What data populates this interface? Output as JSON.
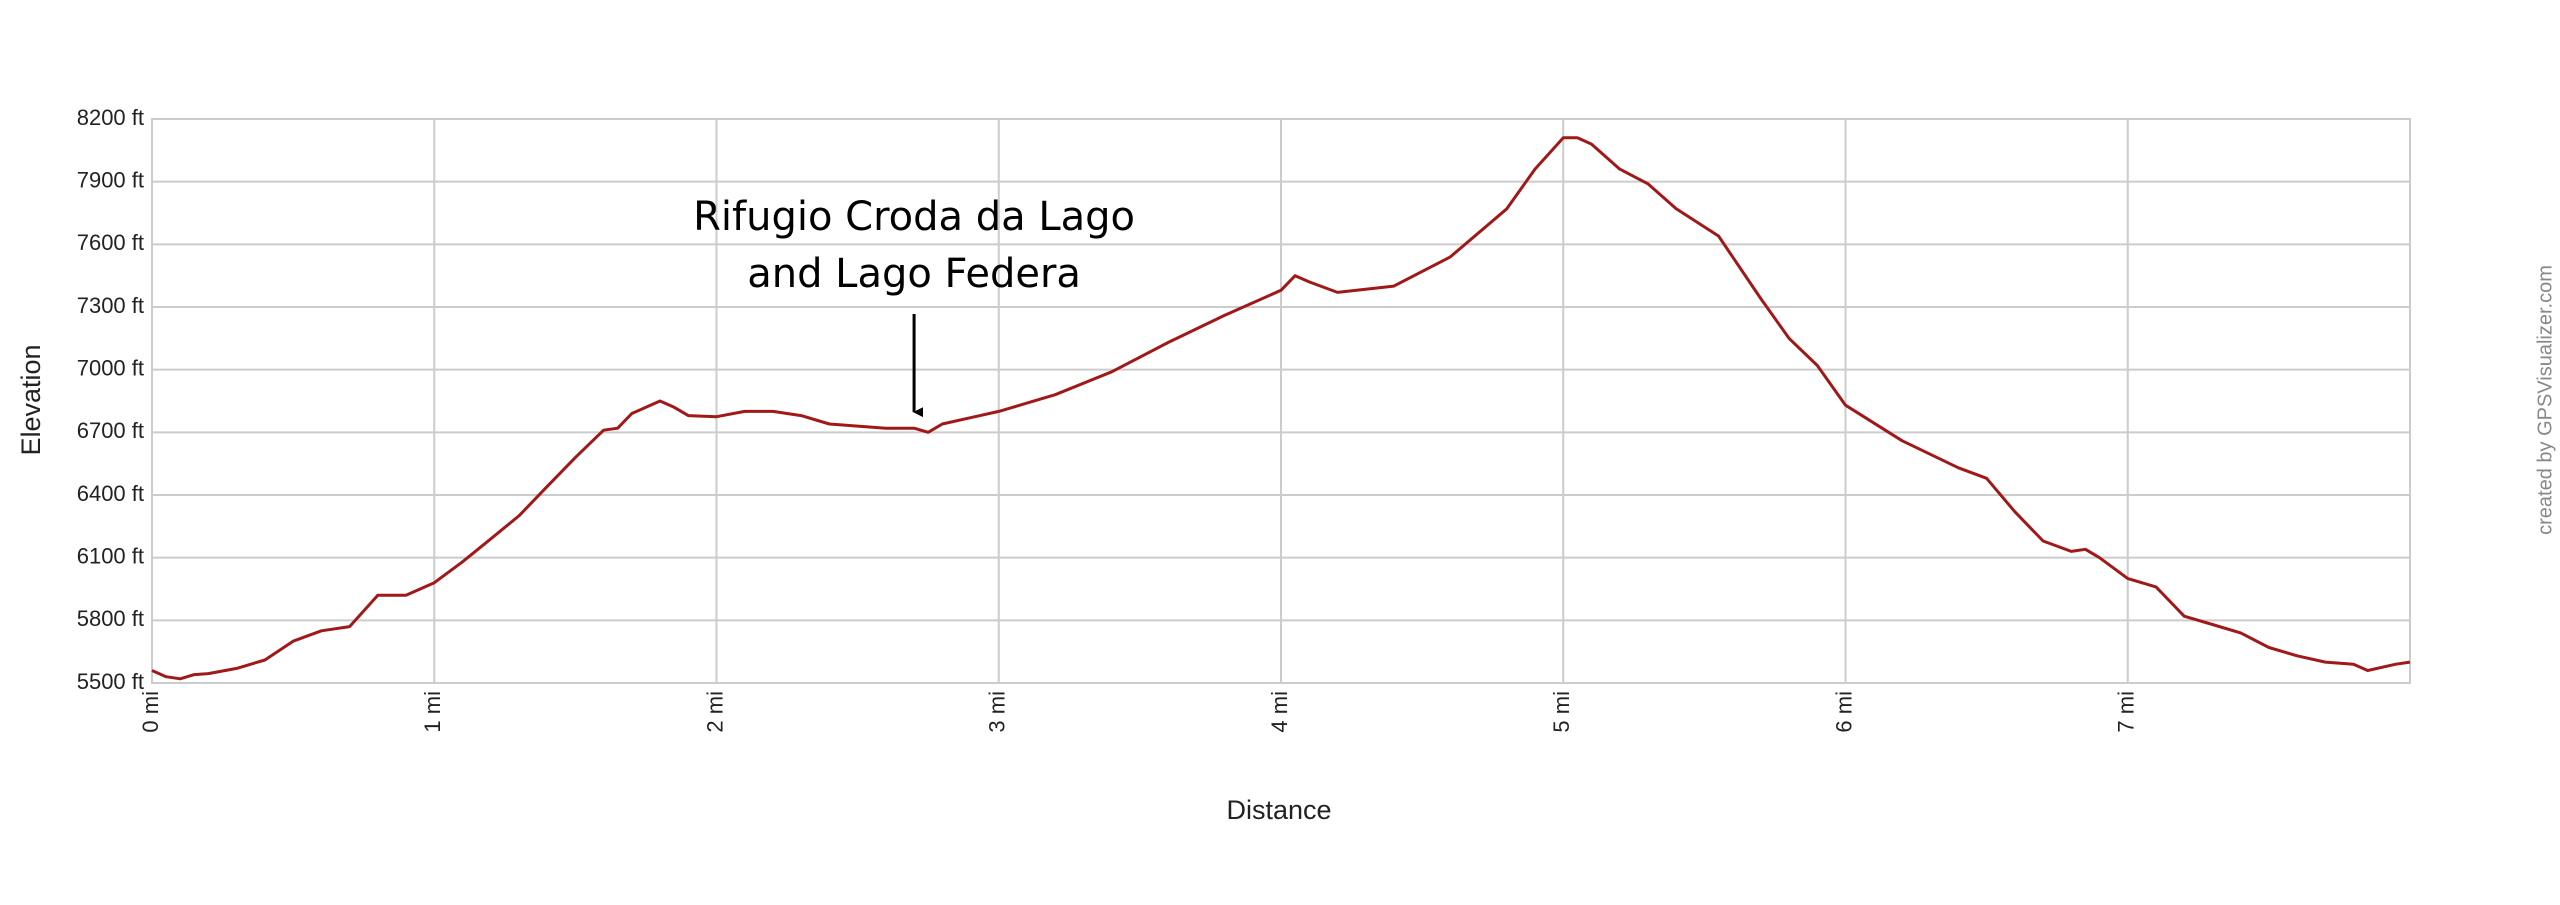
{
  "chart_data": {
    "type": "line",
    "x_label": "Distance",
    "y_label": "Elevation",
    "watermark": "created by GPSVisualizer.com",
    "annotation": {
      "lines": [
        "Rifugio Croda da Lago",
        "and Lago Federa"
      ],
      "x": 2.7
    },
    "series": [
      {
        "name": "Elevation",
        "color": "#a01818",
        "x": [
          0,
          0.05,
          0.1,
          0.15,
          0.2,
          0.3,
          0.4,
          0.5,
          0.6,
          0.7,
          0.8,
          0.9,
          1.0,
          1.1,
          1.2,
          1.3,
          1.4,
          1.5,
          1.6,
          1.65,
          1.7,
          1.8,
          1.85,
          1.9,
          2.0,
          2.1,
          2.2,
          2.3,
          2.4,
          2.5,
          2.6,
          2.7,
          2.75,
          2.8,
          2.9,
          3.0,
          3.2,
          3.4,
          3.6,
          3.8,
          4.0,
          4.05,
          4.1,
          4.2,
          4.4,
          4.6,
          4.8,
          4.9,
          5.0,
          5.05,
          5.1,
          5.2,
          5.3,
          5.4,
          5.55,
          5.7,
          5.8,
          5.9,
          6.0,
          6.2,
          6.4,
          6.5,
          6.6,
          6.7,
          6.8,
          6.85,
          6.9,
          7.0,
          7.1,
          7.2,
          7.3,
          7.4,
          7.5,
          7.6,
          7.7,
          7.8,
          7.85,
          7.95,
          8.0
        ],
        "values": [
          5560,
          5530,
          5520,
          5540,
          5545,
          5570,
          5610,
          5700,
          5750,
          5770,
          5920,
          5920,
          5980,
          6080,
          6190,
          6300,
          6440,
          6580,
          6710,
          6720,
          6790,
          6850,
          6820,
          6780,
          6775,
          6800,
          6800,
          6780,
          6740,
          6730,
          6720,
          6720,
          6700,
          6740,
          6770,
          6800,
          6880,
          6990,
          7130,
          7260,
          7380,
          7450,
          7420,
          7370,
          7400,
          7540,
          7770,
          7960,
          8110,
          8110,
          8080,
          7960,
          7890,
          7770,
          7640,
          7340,
          7150,
          7020,
          6830,
          6660,
          6530,
          6480,
          6320,
          6180,
          6130,
          6140,
          6100,
          6000,
          5960,
          5820,
          5780,
          5740,
          5670,
          5630,
          5600,
          5590,
          5560,
          5590,
          5600
        ]
      }
    ],
    "xlim": [
      0,
      8
    ],
    "xticks": [
      {
        "value": 0,
        "label": "0 mi"
      },
      {
        "value": 1,
        "label": "1 mi"
      },
      {
        "value": 2,
        "label": "2 mi"
      },
      {
        "value": 3,
        "label": "3 mi"
      },
      {
        "value": 4,
        "label": "4 mi"
      },
      {
        "value": 5,
        "label": "5 mi"
      },
      {
        "value": 6,
        "label": "6 mi"
      },
      {
        "value": 7,
        "label": "7 mi"
      }
    ],
    "ylim": [
      5500,
      8200
    ],
    "yticks": [
      {
        "value": 5500,
        "label": "5500 ft"
      },
      {
        "value": 5800,
        "label": "5800 ft"
      },
      {
        "value": 6100,
        "label": "6100 ft"
      },
      {
        "value": 6400,
        "label": "6400 ft"
      },
      {
        "value": 6700,
        "label": "6700 ft"
      },
      {
        "value": 7000,
        "label": "7000 ft"
      },
      {
        "value": 7300,
        "label": "7300 ft"
      },
      {
        "value": 7600,
        "label": "7600 ft"
      },
      {
        "value": 7900,
        "label": "7900 ft"
      },
      {
        "value": 8200,
        "label": "8200 ft"
      }
    ],
    "grid": true
  }
}
